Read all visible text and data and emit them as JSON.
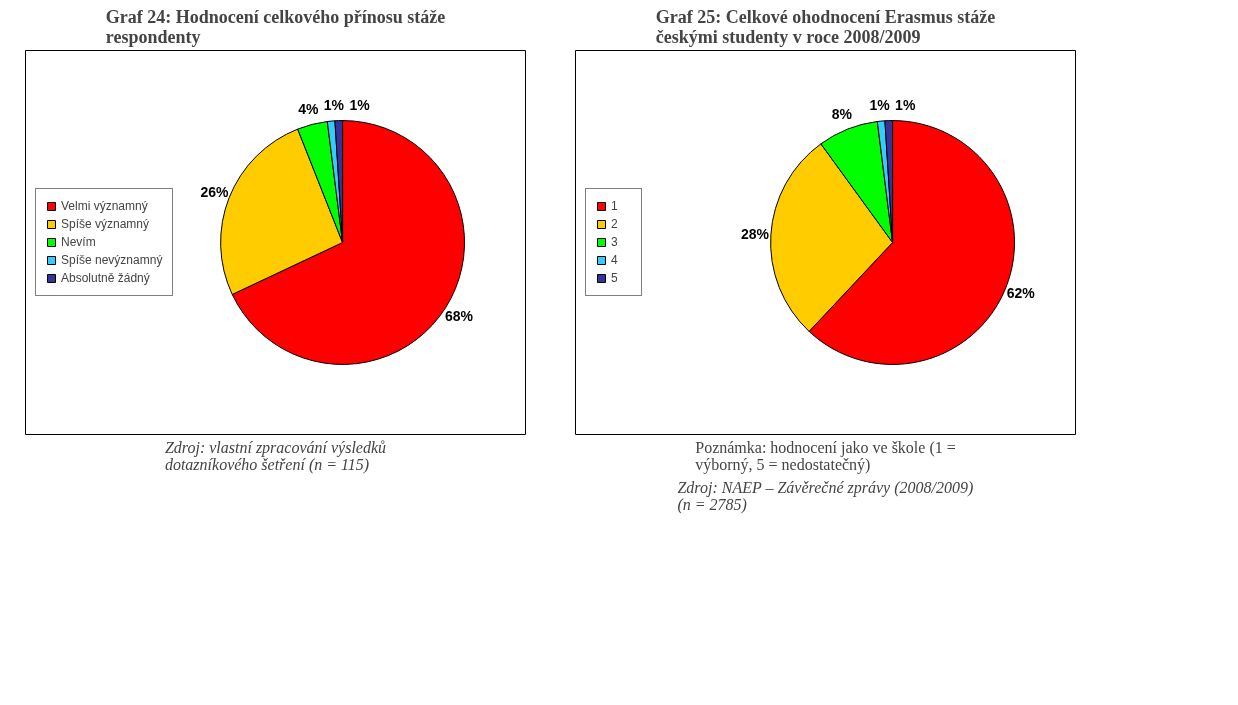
{
  "chart_data": [
    {
      "type": "pie",
      "title": "Graf 24: Hodnocení celkového přínosu stáže respondenty",
      "categories": [
        "Velmi významný",
        "Spíše významný",
        "Nevím",
        "Spíše nevýznamný",
        "Absolutně žádný"
      ],
      "values": [
        68,
        26,
        4,
        1,
        1
      ],
      "colors": [
        "#ff0000",
        "#ffcc00",
        "#00ff00",
        "#33ccff",
        "#333399"
      ],
      "value_labels": [
        "68%",
        "26%",
        "4%",
        "1%",
        "1%"
      ],
      "legend": "left",
      "annotations": [
        "Zdroj: vlastní zpracování výsledků dotazníkového šetření (n = 115)"
      ]
    },
    {
      "type": "pie",
      "title": "Graf 25: Celkové ohodnocení Erasmus stáže českými studenty v roce 2008/2009",
      "categories": [
        "1",
        "2",
        "3",
        "4",
        "5"
      ],
      "values": [
        62,
        28,
        8,
        1,
        1
      ],
      "colors": [
        "#ff0000",
        "#ffcc00",
        "#00ff00",
        "#33ccff",
        "#333399"
      ],
      "value_labels": [
        "62%",
        "28%",
        "8%",
        "1%",
        "1%"
      ],
      "legend": "left",
      "annotations": [
        "Poznámka: hodnocení jako ve škole (1 = výborný, 5 = nedostatečný)",
        "Zdroj: NAEP – Závěrečné zprávy (2008/2009) (n = 2785)"
      ]
    }
  ]
}
